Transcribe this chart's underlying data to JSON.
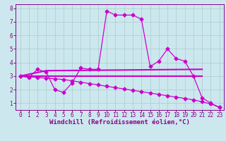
{
  "xlabel": "Windchill (Refroidissement éolien,°C)",
  "xlim": [
    -0.5,
    23.5
  ],
  "ylim": [
    0.5,
    8.3
  ],
  "xticks": [
    0,
    1,
    2,
    3,
    4,
    5,
    6,
    7,
    8,
    9,
    10,
    11,
    12,
    13,
    14,
    15,
    16,
    17,
    18,
    19,
    20,
    21,
    22,
    23
  ],
  "yticks": [
    1,
    2,
    3,
    4,
    5,
    6,
    7,
    8
  ],
  "background_color": "#cce8ee",
  "line_color": "#cc00cc",
  "grid_color": "#aacccc",
  "line1_x": [
    0,
    1,
    2,
    3,
    4,
    5,
    6,
    7,
    8,
    9,
    10,
    11,
    12,
    13,
    14,
    15,
    16,
    17,
    18,
    19,
    20,
    21,
    22,
    23
  ],
  "line1_y": [
    3.0,
    2.9,
    3.5,
    3.3,
    2.0,
    1.8,
    2.5,
    3.6,
    3.5,
    3.5,
    7.8,
    7.5,
    7.5,
    7.5,
    7.2,
    3.7,
    4.1,
    5.0,
    4.3,
    4.1,
    3.0,
    1.4,
    1.0,
    0.7
  ],
  "line2_x": [
    0,
    3,
    21
  ],
  "line2_y": [
    3.0,
    3.4,
    3.5
  ],
  "line3_x": [
    0,
    21
  ],
  "line3_y": [
    3.0,
    3.0
  ],
  "line4_x": [
    0,
    1,
    2,
    3,
    4,
    5,
    6,
    7,
    8,
    9,
    10,
    11,
    12,
    13,
    14,
    15,
    16,
    17,
    18,
    19,
    20,
    21,
    22,
    23
  ],
  "line4_y": [
    3.0,
    2.95,
    2.9,
    2.85,
    2.8,
    2.75,
    2.65,
    2.55,
    2.45,
    2.35,
    2.25,
    2.15,
    2.05,
    1.95,
    1.85,
    1.75,
    1.65,
    1.55,
    1.45,
    1.35,
    1.25,
    1.1,
    0.95,
    0.7
  ],
  "marker": "D",
  "markersize": 2.5,
  "linewidth": 0.9,
  "flat_linewidth": 1.5,
  "tick_fontsize": 5.5,
  "xlabel_fontsize": 6.5
}
